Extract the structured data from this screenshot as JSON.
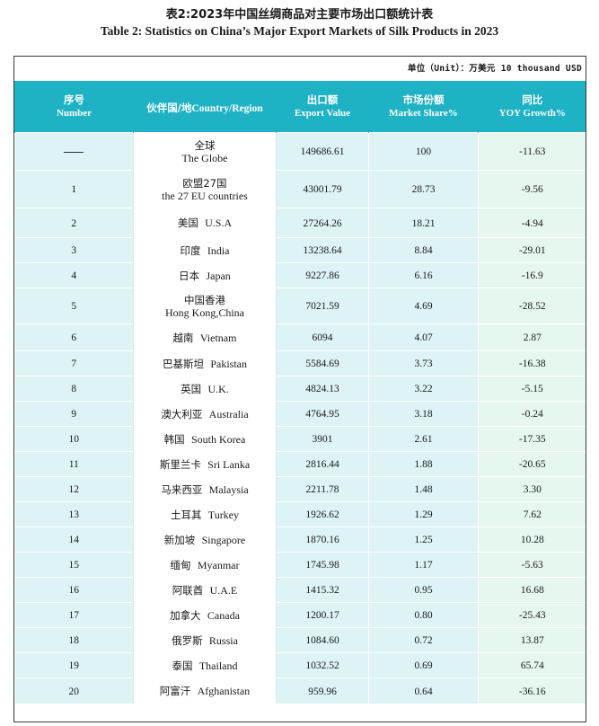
{
  "title": {
    "cn": "表2:2023年中国丝绸商品对主要市场出口额统计表",
    "en": "Table 2: Statistics on China’s Major Export Markets of Silk Products in 2023"
  },
  "unit": "单位（Unit）：万美元 10 thousand USD",
  "headers": {
    "number": {
      "cn": "序号",
      "en": "Number"
    },
    "partner": {
      "cn": "伙伴国/地",
      "en": "Country/Region"
    },
    "export": {
      "cn": "出口额",
      "en": "Export Value"
    },
    "share": {
      "cn": "市场份额",
      "en": "Market Share%"
    },
    "yoy": {
      "cn": "同比",
      "en": "YOY Growth%"
    }
  },
  "rows": [
    {
      "number": "",
      "partner_cn": "全球",
      "partner_en": "The Globe",
      "export": "149686.61",
      "share": "100",
      "yoy": "-11.63"
    },
    {
      "number": "1",
      "partner_cn": "欧盟27国",
      "partner_en": "the 27 EU countries",
      "export": "43001.79",
      "share": "28.73",
      "yoy": "-9.56"
    },
    {
      "number": "2",
      "partner_cn": "美国",
      "partner_en": "U.S.A",
      "export": "27264.26",
      "share": "18.21",
      "yoy": "-4.94"
    },
    {
      "number": "3",
      "partner_cn": "印度",
      "partner_en": "India",
      "export": "13238.64",
      "share": "8.84",
      "yoy": "-29.01"
    },
    {
      "number": "4",
      "partner_cn": "日本",
      "partner_en": "Japan",
      "export": "9227.86",
      "share": "6.16",
      "yoy": "-16.9"
    },
    {
      "number": "5",
      "partner_cn": "中国香港",
      "partner_en": "Hong Kong,China",
      "export": "7021.59",
      "share": "4.69",
      "yoy": "-28.52"
    },
    {
      "number": "6",
      "partner_cn": "越南",
      "partner_en": "Vietnam",
      "export": "6094",
      "share": "4.07",
      "yoy": "2.87"
    },
    {
      "number": "7",
      "partner_cn": "巴基斯坦",
      "partner_en": "Pakistan",
      "export": "5584.69",
      "share": "3.73",
      "yoy": "-16.38"
    },
    {
      "number": "8",
      "partner_cn": "英国",
      "partner_en": "U.K.",
      "export": "4824.13",
      "share": "3.22",
      "yoy": "-5.15"
    },
    {
      "number": "9",
      "partner_cn": "澳大利亚",
      "partner_en": "Australia",
      "export": "4764.95",
      "share": "3.18",
      "yoy": "-0.24"
    },
    {
      "number": "10",
      "partner_cn": "韩国",
      "partner_en": "South Korea",
      "export": "3901",
      "share": "2.61",
      "yoy": "-17.35"
    },
    {
      "number": "11",
      "partner_cn": "斯里兰卡",
      "partner_en": "Sri Lanka",
      "export": "2816.44",
      "share": "1.88",
      "yoy": "-20.65"
    },
    {
      "number": "12",
      "partner_cn": "马来西亚",
      "partner_en": "Malaysia",
      "export": "2211.78",
      "share": "1.48",
      "yoy": "3.30"
    },
    {
      "number": "13",
      "partner_cn": "土耳其",
      "partner_en": "Turkey",
      "export": "1926.62",
      "share": "1.29",
      "yoy": "7.62"
    },
    {
      "number": "14",
      "partner_cn": "新加坡",
      "partner_en": "Singapore",
      "export": "1870.16",
      "share": "1.25",
      "yoy": "10.28"
    },
    {
      "number": "15",
      "partner_cn": "缅甸",
      "partner_en": "Myanmar",
      "export": "1745.98",
      "share": "1.17",
      "yoy": "-5.63"
    },
    {
      "number": "16",
      "partner_cn": "阿联酋",
      "partner_en": "U.A.E",
      "export": "1415.32",
      "share": "0.95",
      "yoy": "16.68"
    },
    {
      "number": "17",
      "partner_cn": "加拿大",
      "partner_en": "Canada",
      "export": "1200.17",
      "share": "0.80",
      "yoy": "-25.43"
    },
    {
      "number": "18",
      "partner_cn": "俄罗斯",
      "partner_en": "Russia",
      "export": "1084.60",
      "share": "0.72",
      "yoy": "13.87"
    },
    {
      "number": "19",
      "partner_cn": "泰国",
      "partner_en": "Thailand",
      "export": "1032.52",
      "share": "0.69",
      "yoy": "65.74"
    },
    {
      "number": "20",
      "partner_cn": "阿富汗",
      "partner_en": "Afghanistan",
      "export": "959.96",
      "share": "0.64",
      "yoy": "-36.16"
    }
  ],
  "colors": {
    "header_bg": "#1eb2c4",
    "header_text": "#ffffff",
    "cell_bg": "#ddf3f6",
    "yoy_bg": "#e6f7f0"
  }
}
